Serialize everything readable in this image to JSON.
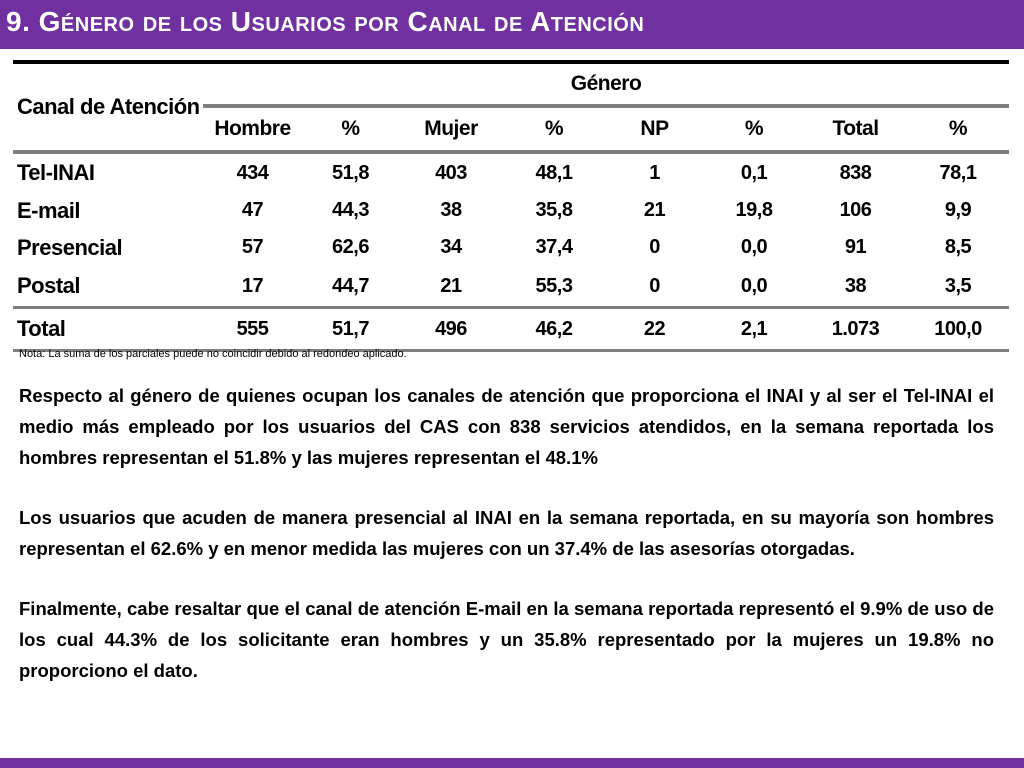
{
  "header": {
    "title": "9. Género de los Usuarios por Canal de Atención",
    "accent_color": "#7030a0"
  },
  "table": {
    "row_header": "Canal de Atención",
    "group_header": "Género",
    "columns": [
      "Hombre",
      "%",
      "Mujer",
      "%",
      "NP",
      "%",
      "Total",
      "%"
    ],
    "rows": [
      {
        "label": "Tel-INAI",
        "values": [
          "434",
          "51,8",
          "403",
          "48,1",
          "1",
          "0,1",
          "838",
          "78,1"
        ]
      },
      {
        "label": "E-mail",
        "values": [
          "47",
          "44,3",
          "38",
          "35,8",
          "21",
          "19,8",
          "106",
          "9,9"
        ]
      },
      {
        "label": "Presencial",
        "values": [
          "57",
          "62,6",
          "34",
          "37,4",
          "0",
          "0,0",
          "91",
          "8,5"
        ]
      },
      {
        "label": "Postal",
        "values": [
          "17",
          "44,7",
          "21",
          "55,3",
          "0",
          "0,0",
          "38",
          "3,5"
        ]
      }
    ],
    "total": {
      "label": "Total",
      "values": [
        "555",
        "51,7",
        "496",
        "46,2",
        "22",
        "2,1",
        "1.073",
        "100,0"
      ]
    }
  },
  "note": "Nota: La suma de los parciales puede no coincidir debido al redondeo aplicado.",
  "paragraphs": [
    "Respecto al género de quienes ocupan los canales de atención que proporciona el INAI y al ser el Tel-INAI el medio más empleado por los usuarios del CAS con 838 servicios atendidos, en la semana reportada los hombres representan el 51.8% y las mujeres representan el 48.1%",
    "Los usuarios que acuden de manera presencial al INAI en la semana reportada, en su mayoría son hombres representan el 62.6% y en menor medida las mujeres con un 37.4% de las asesorías otorgadas.",
    "Finalmente, cabe resaltar que el canal de atención E-mail en la semana reportada representó el 9.9% de uso de los cual 44.3% de los solicitante eran hombres y un 35.8% representado por la mujeres un 19.8% no proporciono el dato."
  ]
}
